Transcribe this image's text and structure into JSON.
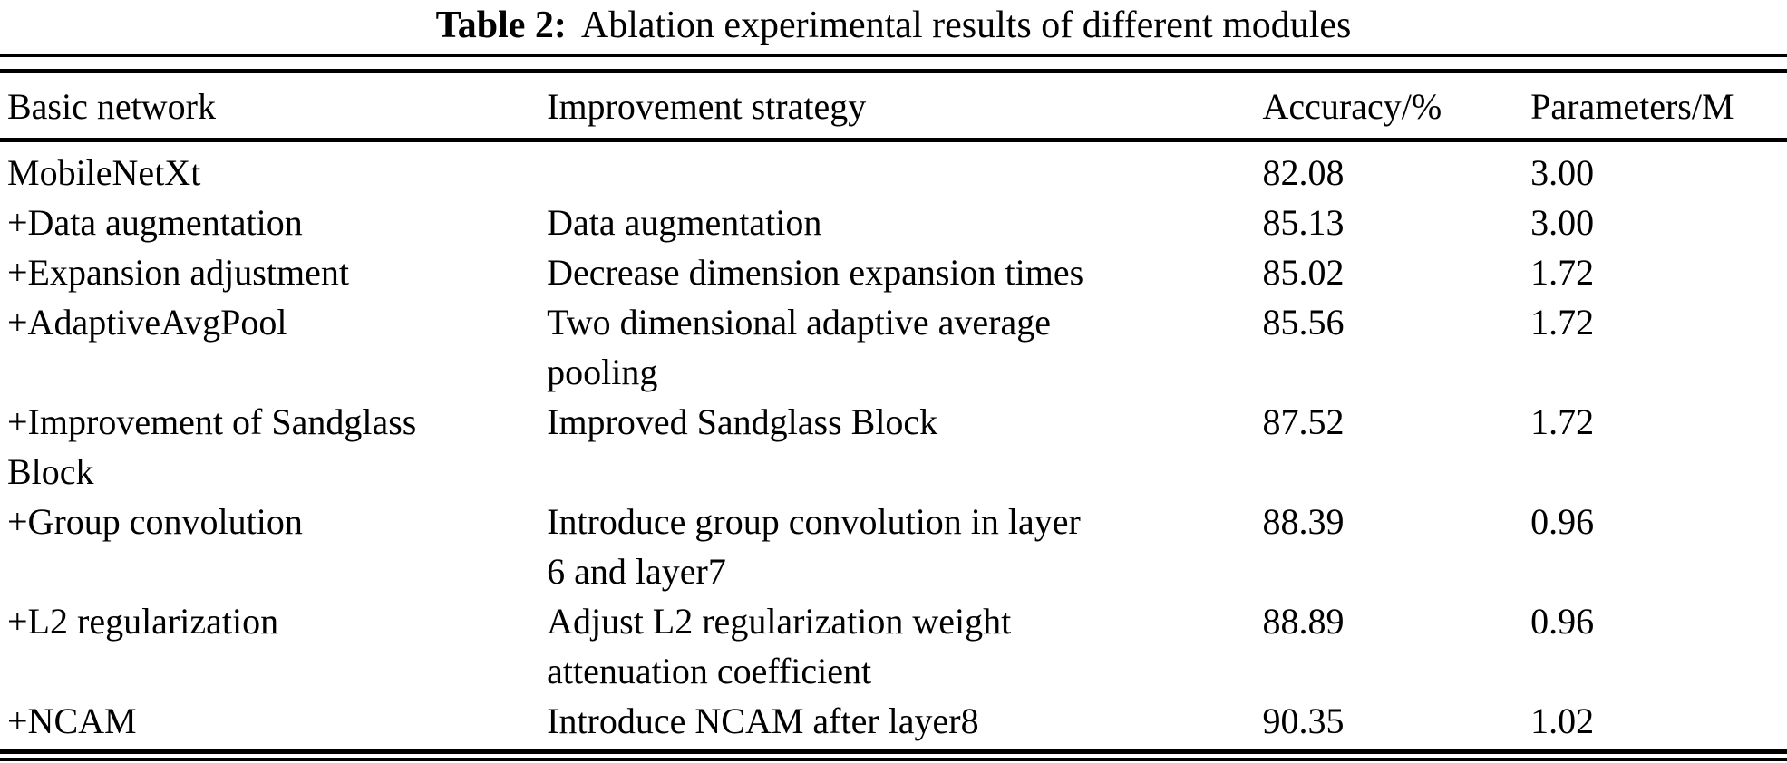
{
  "caption": {
    "label": "Table 2:",
    "text": "Ablation experimental results of different modules"
  },
  "table": {
    "headers": [
      "Basic network",
      "Improvement strategy",
      "Accuracy/%",
      "Parameters/M"
    ],
    "rows": [
      {
        "network": "MobileNetXt",
        "strategy": "",
        "accuracy": "82.08",
        "parameters": "3.00"
      },
      {
        "network": "+Data augmentation",
        "strategy": "Data augmentation",
        "accuracy": "85.13",
        "parameters": "3.00"
      },
      {
        "network": "+Expansion adjustment",
        "strategy": "Decrease dimension expansion times",
        "accuracy": "85.02",
        "parameters": "1.72"
      },
      {
        "network": "+AdaptiveAvgPool",
        "strategy": "Two dimensional adaptive average\npooling",
        "accuracy": "85.56",
        "parameters": "1.72"
      },
      {
        "network": "+Improvement of Sandglass\nBlock",
        "strategy": "Improved Sandglass Block",
        "accuracy": "87.52",
        "parameters": "1.72"
      },
      {
        "network": "+Group convolution",
        "strategy": "Introduce group convolution in layer\n6 and layer7",
        "accuracy": "88.39",
        "parameters": "0.96"
      },
      {
        "network": "+L2 regularization",
        "strategy": "Adjust L2 regularization weight\nattenuation coefficient",
        "accuracy": "88.89",
        "parameters": "0.96"
      },
      {
        "network": "+NCAM",
        "strategy": "Introduce NCAM after layer8",
        "accuracy": "90.35",
        "parameters": "1.02"
      }
    ]
  },
  "colors": {
    "text": "#000000",
    "background": "#ffffff",
    "rule": "#000000"
  }
}
